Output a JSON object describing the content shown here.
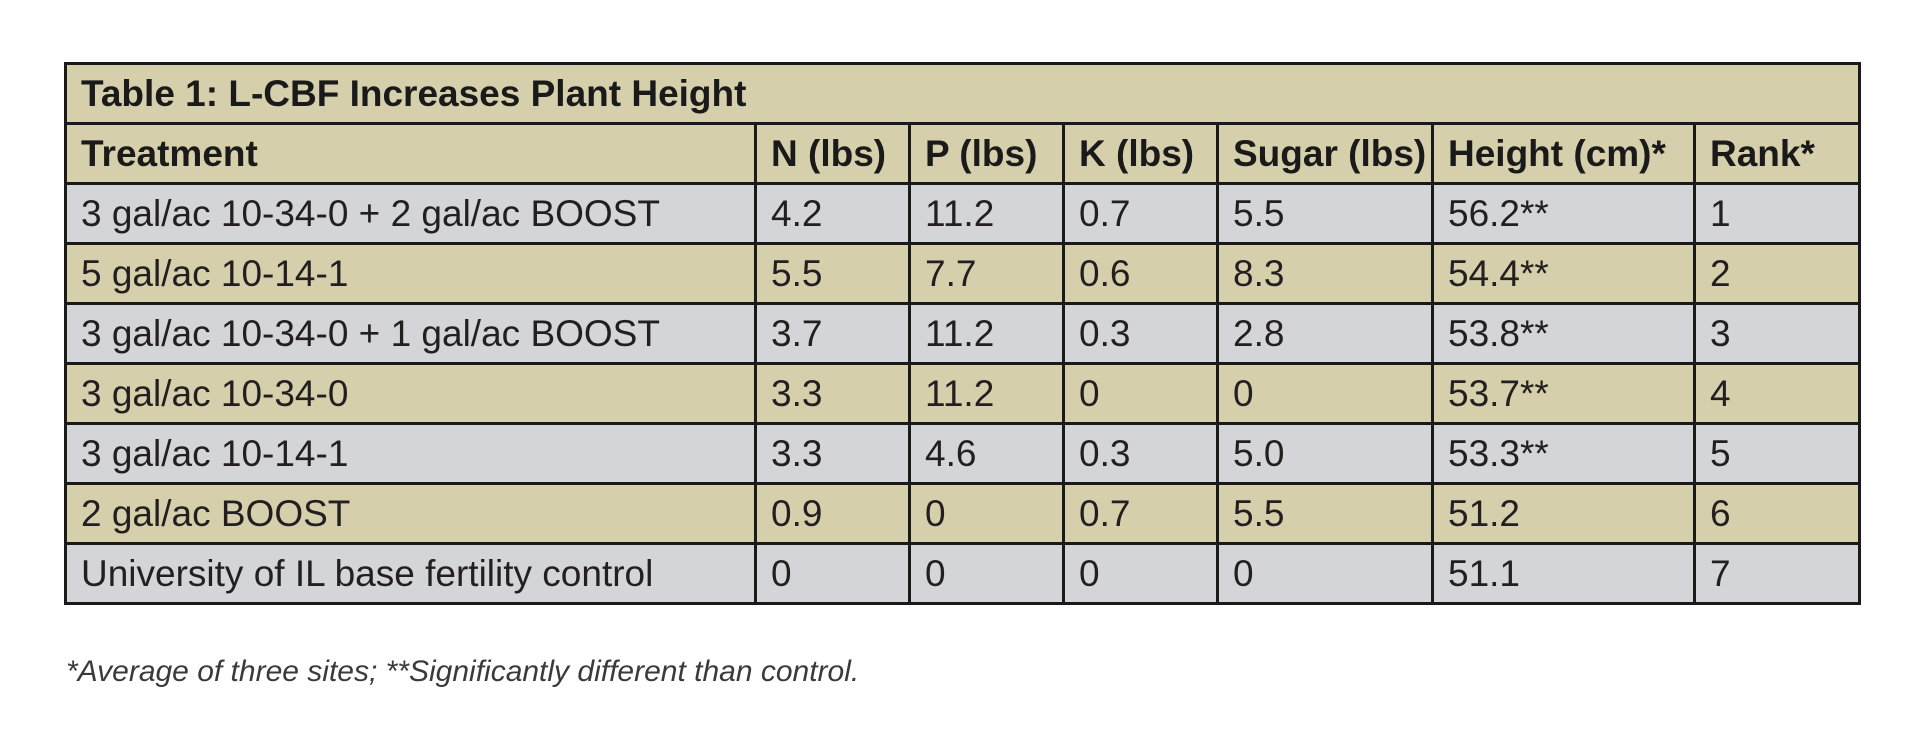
{
  "table": {
    "title": "Table 1: L-CBF Increases Plant Height",
    "headers": [
      "Treatment",
      "N (lbs)",
      "P (lbs)",
      "K (lbs)",
      "Sugar (lbs)",
      "Height (cm)*",
      "Rank*"
    ],
    "rows": [
      [
        "3 gal/ac 10-34-0 + 2 gal/ac BOOST",
        "4.2",
        "11.2",
        "0.7",
        "5.5",
        "56.2**",
        "1"
      ],
      [
        "5 gal/ac 10-14-1",
        "5.5",
        "7.7",
        "0.6",
        "8.3",
        "54.4**",
        "2"
      ],
      [
        "3 gal/ac 10-34-0 + 1 gal/ac BOOST",
        "3.7",
        "11.2",
        "0.3",
        "2.8",
        "53.8**",
        "3"
      ],
      [
        "3 gal/ac 10-34-0",
        "3.3",
        "11.2",
        "0",
        "0",
        "53.7**",
        "4"
      ],
      [
        "3 gal/ac 10-14-1",
        "3.3",
        "4.6",
        "0.3",
        "5.0",
        "53.3**",
        "5"
      ],
      [
        "2 gal/ac BOOST",
        "0.9",
        "0",
        "0.7",
        "5.5",
        "51.2",
        "6"
      ],
      [
        "University of IL base fertility control",
        "0",
        "0",
        "0",
        "0",
        "51.1",
        "7"
      ]
    ]
  },
  "footnote": "*Average of three sites; **Significantly different than control.",
  "colors": {
    "title_bg": "#3e6a98",
    "header_bg": "#d5d0ab",
    "row_grey": "#d4d5d9",
    "row_tan": "#d5d0ab",
    "border": "#1a1a1a"
  }
}
